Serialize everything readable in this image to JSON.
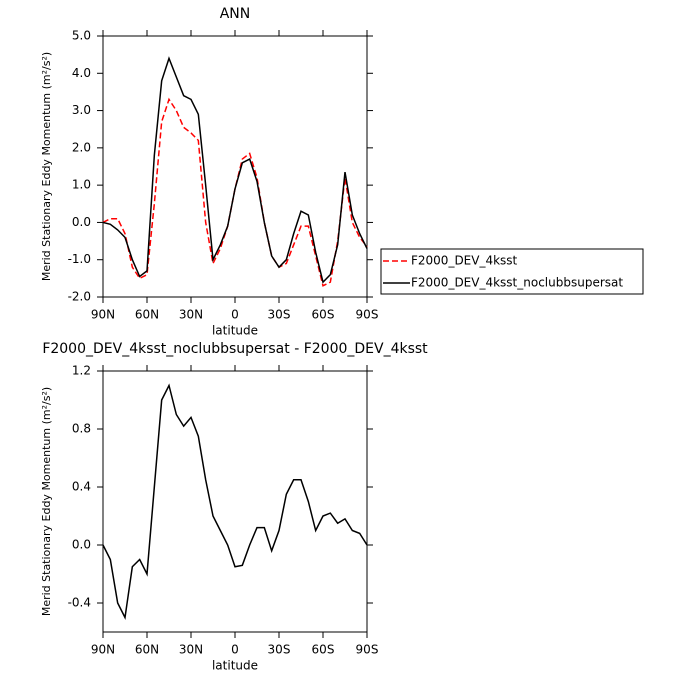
{
  "chart_data": [
    {
      "type": "line",
      "title": "ANN",
      "xlabel": "latitude",
      "ylabel": "Merid Stationary Eddy Momentum (m²/s²)",
      "x": [
        90,
        85,
        80,
        75,
        70,
        65,
        60,
        55,
        50,
        45,
        40,
        35,
        30,
        25,
        20,
        15,
        10,
        5,
        0,
        -5,
        -10,
        -15,
        -20,
        -25,
        -30,
        -35,
        -40,
        -45,
        -50,
        -55,
        -60,
        -65,
        -70,
        -75,
        -80,
        -85,
        -90
      ],
      "series": [
        {
          "name": "F2000_DEV_4ksst",
          "color": "#ff0000",
          "line_style": "dashed",
          "values": [
            0.0,
            0.1,
            0.1,
            -0.3,
            -1.2,
            -1.5,
            -1.4,
            0.5,
            2.7,
            3.3,
            3.0,
            2.55,
            2.4,
            2.2,
            0.0,
            -1.1,
            -0.7,
            -0.1,
            0.9,
            1.7,
            1.85,
            1.2,
            0.0,
            -0.9,
            -1.2,
            -1.1,
            -0.6,
            -0.1,
            -0.1,
            -0.9,
            -1.7,
            -1.6,
            -0.5,
            1.2,
            0.0,
            -0.4,
            -0.65
          ]
        },
        {
          "name": "F2000_DEV_4ksst_noclubbsupersat",
          "color": "#000000",
          "line_style": "solid",
          "values": [
            0.0,
            -0.05,
            -0.2,
            -0.4,
            -1.0,
            -1.45,
            -1.3,
            1.8,
            3.8,
            4.4,
            3.9,
            3.4,
            3.3,
            2.9,
            1.0,
            -1.0,
            -0.6,
            -0.1,
            0.9,
            1.6,
            1.7,
            1.1,
            0.0,
            -0.9,
            -1.2,
            -1.0,
            -0.3,
            0.3,
            0.2,
            -0.8,
            -1.6,
            -1.4,
            -0.6,
            1.35,
            0.2,
            -0.3,
            -0.7
          ]
        }
      ],
      "xlim": [
        90,
        -90
      ],
      "xticks": [
        {
          "value": 90,
          "label": "90N"
        },
        {
          "value": 60,
          "label": "60N"
        },
        {
          "value": 30,
          "label": "30N"
        },
        0,
        {
          "value": -30,
          "label": "30S"
        },
        {
          "value": -60,
          "label": "60S"
        },
        {
          "value": -90,
          "label": "90S"
        }
      ],
      "ylim": [
        -2,
        5
      ],
      "yticks": [
        {
          "value": -2,
          "label": "-2.0"
        },
        {
          "value": -1,
          "label": "-1.0"
        },
        {
          "value": 0,
          "label": "0.0"
        },
        {
          "value": 1,
          "label": "1.0"
        },
        {
          "value": 2,
          "label": "2.0"
        },
        {
          "value": 3,
          "label": "3.0"
        },
        {
          "value": 4,
          "label": "4.0"
        },
        {
          "value": 5,
          "label": "5.0"
        }
      ],
      "legend": "outside-right-bottom"
    },
    {
      "type": "line",
      "title": "F2000_DEV_4ksst_noclubbsupersat - F2000_DEV_4ksst",
      "xlabel": "latitude",
      "ylabel": "Merid Stationary Eddy Momentum (m²/s²)",
      "x": [
        90,
        85,
        80,
        75,
        70,
        65,
        60,
        55,
        50,
        45,
        40,
        35,
        30,
        25,
        20,
        15,
        10,
        5,
        0,
        -5,
        -10,
        -15,
        -20,
        -25,
        -30,
        -35,
        -40,
        -45,
        -50,
        -55,
        -60,
        -65,
        -70,
        -75,
        -80,
        -85,
        -90
      ],
      "series": [
        {
          "color": "#000000",
          "line_style": "solid",
          "values": [
            0.0,
            -0.1,
            -0.4,
            -0.5,
            -0.15,
            -0.1,
            -0.2,
            0.4,
            1.0,
            1.1,
            0.9,
            0.82,
            0.88,
            0.75,
            0.45,
            0.2,
            0.1,
            0.0,
            -0.15,
            -0.14,
            0.0,
            0.12,
            0.12,
            -0.04,
            0.1,
            0.35,
            0.45,
            0.45,
            0.3,
            0.1,
            0.2,
            0.22,
            0.15,
            0.18,
            0.1,
            0.08,
            0.0
          ]
        }
      ],
      "xlim": [
        90,
        -90
      ],
      "xticks": [
        {
          "value": 90,
          "label": "90N"
        },
        {
          "value": 60,
          "label": "60N"
        },
        {
          "value": 30,
          "label": "30N"
        },
        0,
        {
          "value": -30,
          "label": "30S"
        },
        {
          "value": -60,
          "label": "60S"
        },
        {
          "value": -90,
          "label": "90S"
        }
      ],
      "ylim": [
        -0.6,
        1.2
      ],
      "yticks": [
        -0.4,
        {
          "value": 0,
          "label": "0.0"
        },
        0.4,
        0.8,
        1.2
      ]
    }
  ]
}
